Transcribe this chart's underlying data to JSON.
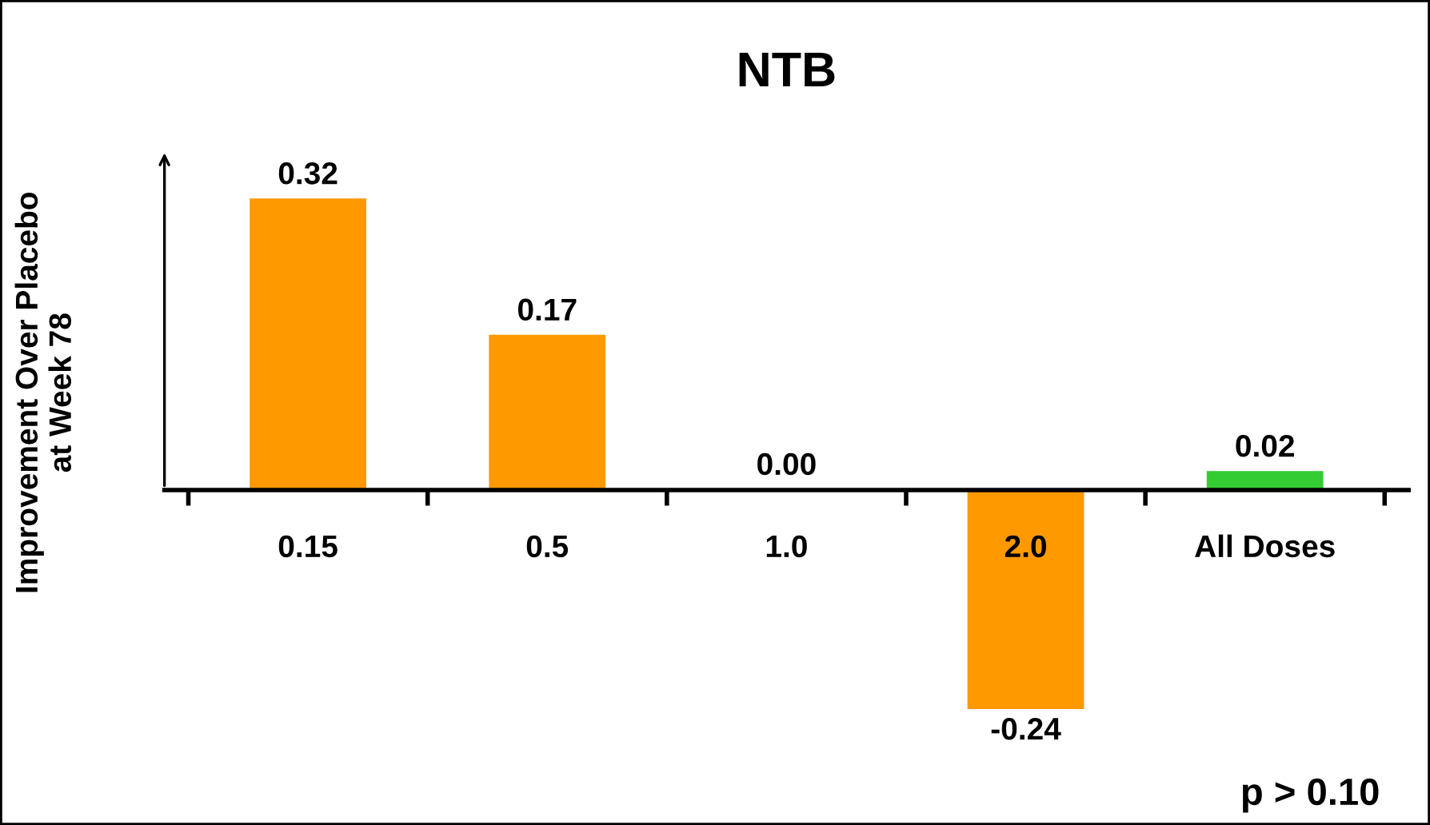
{
  "chart_data": {
    "type": "bar",
    "title": "NTB",
    "ylabel": "Improvement Over Placebo\nat Week 78",
    "categories": [
      "0.15",
      "0.5",
      "1.0",
      "2.0",
      "All Doses"
    ],
    "values": [
      0.32,
      0.17,
      0.0,
      -0.24,
      0.02
    ],
    "colors": [
      "#ff9900",
      "#ff9900",
      "#ff9900",
      "#ff9900",
      "#33cc33"
    ],
    "value_labels": [
      "0.32",
      "0.17",
      "0.00",
      "-0.24",
      "0.02"
    ],
    "tick_labels": "x",
    "grid": false,
    "legend": false,
    "annotations": [
      "p > 0.10"
    ]
  }
}
